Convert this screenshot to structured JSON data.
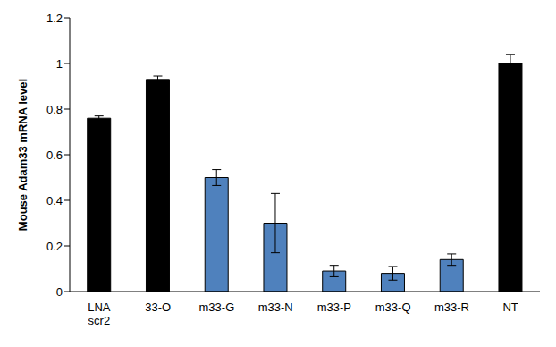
{
  "chart_data": {
    "type": "bar",
    "y_label": "Mouse Adam33 mRNA level",
    "categories": [
      "LNA scr2",
      "33-O",
      "m33-G",
      "m33-N",
      "m33-P",
      "m33-Q",
      "m33-R",
      "NT"
    ],
    "values": [
      0.76,
      0.93,
      0.5,
      0.3,
      0.09,
      0.08,
      0.14,
      1.0
    ],
    "errors": [
      0.01,
      0.015,
      0.035,
      0.13,
      0.025,
      0.03,
      0.025,
      0.04
    ],
    "colors": [
      "#000000",
      "#000000",
      "#4f81bd",
      "#4f81bd",
      "#4f81bd",
      "#4f81bd",
      "#4f81bd",
      "#000000"
    ],
    "ylim": [
      0,
      1.2
    ],
    "yticks": [
      0,
      0.2,
      0.4,
      0.6,
      0.8,
      1,
      1.2
    ],
    "grid": false
  }
}
